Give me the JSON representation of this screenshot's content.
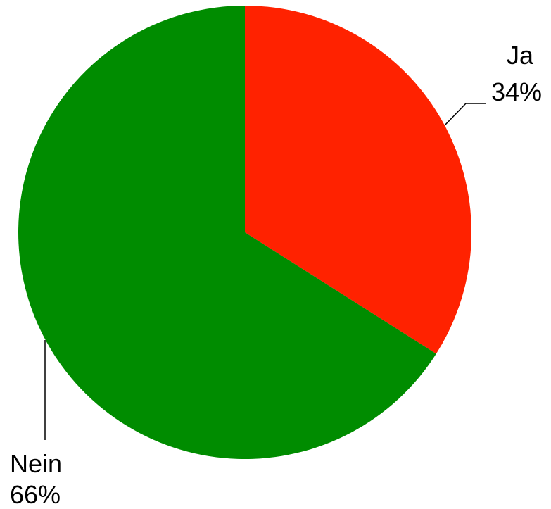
{
  "chart_data": {
    "type": "pie",
    "slices": [
      {
        "label": "Ja",
        "value": 34,
        "value_label": "34%",
        "color": "#ff2200"
      },
      {
        "label": "Nein",
        "value": 66,
        "value_label": "66%",
        "color": "#008c00"
      }
    ],
    "start_angle_deg": 0,
    "direction": "clockwise",
    "legend": "none"
  }
}
